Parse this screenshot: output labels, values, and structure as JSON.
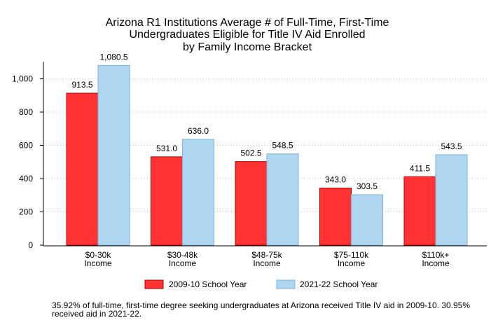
{
  "chart_data": {
    "type": "bar",
    "title": [
      "Arizona R1 Institutions Average # of Full-Time, First-Time",
      "Undergraduates Eligible for Title IV Aid Enrolled",
      "by Family Income Bracket"
    ],
    "categories": [
      [
        "$0-30k",
        "Income"
      ],
      [
        "$30-48k",
        "Income"
      ],
      [
        "$48-75k",
        "Income"
      ],
      [
        "$75-110k",
        "Income"
      ],
      [
        "$110k+",
        "Income"
      ]
    ],
    "series": [
      {
        "name": "2009-10 School Year",
        "color": "#ff3333",
        "values": [
          913.5,
          531.0,
          502.5,
          343.0,
          411.5
        ],
        "labels": [
          "913.5",
          "531.0",
          "502.5",
          "343.0",
          "411.5"
        ]
      },
      {
        "name": "2021-22 School Year",
        "color": "#aed6f1",
        "values": [
          1080.5,
          636.0,
          548.5,
          303.5,
          543.5
        ],
        "labels": [
          "1,080.5",
          "636.0",
          "548.5",
          "303.5",
          "543.5"
        ]
      }
    ],
    "ylim": [
      0,
      1100
    ],
    "yticks": [
      0,
      200,
      400,
      600,
      800,
      1000
    ],
    "ytick_labels": [
      "0",
      "200",
      "400",
      "600",
      "800",
      "1,000"
    ],
    "grid": "y-dotted",
    "legend_position": "bottom"
  },
  "footnote": "35.92% of full-time, first-time degree seeking undergraduates at Arizona received Title IV aid in 2009-10. 30.95% received aid in 2021-22."
}
